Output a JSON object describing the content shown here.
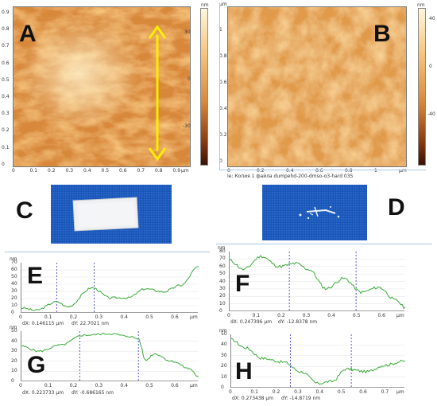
{
  "figure": {
    "panels": {
      "A": {
        "letter": "A"
      },
      "B": {
        "letter": "B"
      },
      "C": {
        "letter": "C"
      },
      "D": {
        "letter": "D"
      },
      "E": {
        "letter": "E"
      },
      "F": {
        "letter": "F"
      },
      "G": {
        "letter": "G"
      },
      "H": {
        "letter": "H"
      }
    },
    "afm_A": {
      "x_ticks": [
        "0",
        "0.1",
        "0.2",
        "0.3",
        "0.4",
        "0.5",
        "0.6",
        "0.7",
        "0.8",
        "0.9"
      ],
      "x_unit": "μm",
      "y_ticks": [
        "0.9",
        "0.8",
        "0.7",
        "0.6",
        "0.5",
        "0.4",
        "0.3",
        "0.2",
        "0.1",
        "0"
      ],
      "colorbar_unit": "nm",
      "colorbar_ticks": [
        "30",
        "0",
        "-30"
      ]
    },
    "afm_B": {
      "x_ticks": [
        "0",
        "0.2",
        "0.4",
        "0.6",
        "0.8",
        "1"
      ],
      "x_unit": "μm",
      "y_ticks": [
        "1",
        "0.8",
        "0.6",
        "0.4",
        "0.2",
        "0"
      ],
      "y_top_unit": "μm",
      "colorbar_unit": "nm",
      "colorbar_ticks": [
        "40",
        "0",
        "-40"
      ],
      "caption": "Ie: Копия 1 файла dumpehd-200-dmso-o3-hard 035"
    },
    "profile_E": {
      "y_unit": "nm",
      "y_ticks": [
        "70",
        "60",
        "50",
        "40",
        "30",
        "20",
        "10",
        "0"
      ],
      "x_ticks": [
        "0",
        "0.1",
        "0.2",
        "0.3",
        "0.4",
        "0.5",
        "0.6"
      ],
      "x_unit": "μm",
      "dx": "dX: 0.146115 μm",
      "dy": "dY: 22.7021 nm"
    },
    "profile_F": {
      "y_unit": "nm",
      "y_ticks": [
        "80",
        "70",
        "60",
        "50",
        "40",
        "30",
        "20",
        "10",
        "0"
      ],
      "x_ticks": [
        "0",
        "0.1",
        "0.2",
        "0.3",
        "0.4",
        "0.5",
        "0.6"
      ],
      "x_unit": "μm",
      "dx": "dX: 0.247396 μm",
      "dy": "dY: -12.8378 nm"
    },
    "profile_G": {
      "y_unit": "nm",
      "y_ticks": [
        "50",
        "40",
        "30",
        "20",
        "10",
        "0"
      ],
      "x_ticks": [
        "0",
        "0.1",
        "0.2",
        "0.3",
        "0.4",
        "0.5",
        "0.6"
      ],
      "x_unit": "μm",
      "dx": "dX: 0.223733 μm",
      "dy": "dY: -0.686165 nm"
    },
    "profile_H": {
      "y_unit": "nm",
      "y_ticks": [
        "50",
        "40",
        "30",
        "20",
        "10",
        "0"
      ],
      "x_ticks": [
        "0",
        "0.1",
        "0.2",
        "0.3",
        "0.4",
        "0.5",
        "0.6",
        "0.7"
      ],
      "x_unit": "μm",
      "dx": "dX: 0.273438 μm",
      "dy": "dY: -14.8719 nm"
    },
    "colors": {
      "afm_light": "#fbd79a",
      "afm_mid": "#d8883a",
      "afm_dark": "#6a2a08",
      "arrow": "#ffee00",
      "profile_line": "#3aaa3a",
      "cursor_line": "#3333cc",
      "photo_blue": "#1a56b8"
    }
  }
}
